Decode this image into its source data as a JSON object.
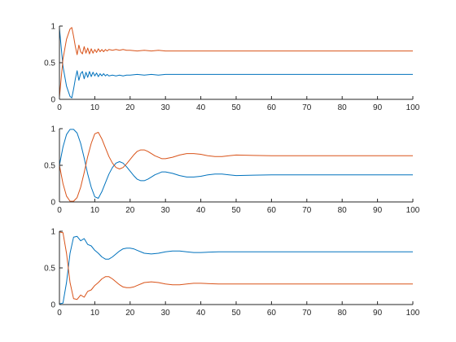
{
  "figure": {
    "background": "#ffffff",
    "axis_color": "#262626"
  },
  "chart_data": [
    {
      "type": "line",
      "title": "",
      "xlabel": "",
      "ylabel": "",
      "xlim": [
        0,
        100
      ],
      "ylim": [
        0,
        1
      ],
      "xticks": [
        0,
        10,
        20,
        30,
        40,
        50,
        60,
        70,
        80,
        90,
        100
      ],
      "yticks": [
        0,
        0.5,
        1
      ],
      "ytick_labels": [
        "0",
        "0.5",
        "1"
      ],
      "grid": false,
      "series": [
        {
          "color": "#0072BD",
          "x": [
            0,
            1,
            2,
            3,
            3.5,
            4,
            4.5,
            5,
            5.5,
            6,
            6.5,
            7,
            7.5,
            8,
            8.5,
            9,
            9.5,
            10,
            10.5,
            11,
            11.5,
            12,
            12.5,
            13,
            13.5,
            14,
            15,
            16,
            17,
            18,
            19,
            20,
            22,
            24,
            26,
            28,
            30,
            35,
            40,
            50,
            60,
            70,
            80,
            90,
            100
          ],
          "y": [
            0.97,
            0.45,
            0.18,
            0.04,
            0.02,
            0.14,
            0.28,
            0.39,
            0.26,
            0.35,
            0.38,
            0.28,
            0.37,
            0.3,
            0.38,
            0.31,
            0.37,
            0.32,
            0.36,
            0.31,
            0.35,
            0.32,
            0.35,
            0.32,
            0.34,
            0.32,
            0.33,
            0.32,
            0.33,
            0.32,
            0.33,
            0.33,
            0.34,
            0.33,
            0.34,
            0.33,
            0.34,
            0.34,
            0.34,
            0.34,
            0.34,
            0.34,
            0.34,
            0.34,
            0.34
          ]
        },
        {
          "color": "#D95319",
          "x": [
            0,
            1,
            2,
            3,
            3.5,
            4,
            4.5,
            5,
            5.5,
            6,
            6.5,
            7,
            7.5,
            8,
            8.5,
            9,
            9.5,
            10,
            10.5,
            11,
            11.5,
            12,
            12.5,
            13,
            13.5,
            14,
            15,
            16,
            17,
            18,
            19,
            20,
            22,
            24,
            26,
            28,
            30,
            35,
            40,
            50,
            60,
            70,
            80,
            90,
            100
          ],
          "y": [
            0.03,
            0.55,
            0.82,
            0.96,
            0.98,
            0.86,
            0.72,
            0.61,
            0.74,
            0.65,
            0.62,
            0.72,
            0.63,
            0.7,
            0.62,
            0.69,
            0.63,
            0.68,
            0.64,
            0.69,
            0.65,
            0.68,
            0.65,
            0.68,
            0.66,
            0.68,
            0.67,
            0.68,
            0.67,
            0.68,
            0.67,
            0.67,
            0.66,
            0.67,
            0.66,
            0.67,
            0.66,
            0.66,
            0.66,
            0.66,
            0.66,
            0.66,
            0.66,
            0.66,
            0.66
          ]
        }
      ]
    },
    {
      "type": "line",
      "title": "",
      "xlabel": "",
      "ylabel": "",
      "xlim": [
        0,
        100
      ],
      "ylim": [
        0,
        1
      ],
      "xticks": [
        0,
        10,
        20,
        30,
        40,
        50,
        60,
        70,
        80,
        90,
        100
      ],
      "yticks": [
        0,
        0.5,
        1
      ],
      "ytick_labels": [
        "0",
        "0.5",
        "1"
      ],
      "grid": false,
      "series": [
        {
          "color": "#0072BD",
          "x": [
            0,
            1,
            2,
            3,
            4,
            5,
            6,
            7,
            8,
            9,
            10,
            11,
            12,
            13,
            14,
            15,
            16,
            17,
            18,
            19,
            20,
            21,
            22,
            23,
            24,
            25,
            26,
            27,
            28,
            29,
            30,
            31,
            32,
            34,
            36,
            38,
            40,
            42,
            44,
            46,
            48,
            50,
            55,
            60,
            70,
            80,
            90,
            100
          ],
          "y": [
            0.5,
            0.75,
            0.92,
            0.99,
            0.99,
            0.94,
            0.8,
            0.6,
            0.38,
            0.2,
            0.07,
            0.05,
            0.14,
            0.26,
            0.38,
            0.47,
            0.53,
            0.55,
            0.53,
            0.48,
            0.42,
            0.36,
            0.31,
            0.29,
            0.29,
            0.31,
            0.34,
            0.37,
            0.39,
            0.41,
            0.41,
            0.4,
            0.39,
            0.36,
            0.34,
            0.34,
            0.35,
            0.37,
            0.38,
            0.38,
            0.37,
            0.36,
            0.365,
            0.37,
            0.37,
            0.37,
            0.37,
            0.37
          ]
        },
        {
          "color": "#D95319",
          "x": [
            0,
            1,
            2,
            3,
            4,
            5,
            6,
            7,
            8,
            9,
            10,
            11,
            12,
            13,
            14,
            15,
            16,
            17,
            18,
            19,
            20,
            21,
            22,
            23,
            24,
            25,
            26,
            27,
            28,
            29,
            30,
            31,
            32,
            34,
            36,
            38,
            40,
            42,
            44,
            46,
            48,
            50,
            55,
            60,
            70,
            80,
            90,
            100
          ],
          "y": [
            0.5,
            0.25,
            0.08,
            0.01,
            0.01,
            0.06,
            0.2,
            0.4,
            0.62,
            0.8,
            0.93,
            0.95,
            0.86,
            0.74,
            0.62,
            0.53,
            0.47,
            0.45,
            0.47,
            0.52,
            0.58,
            0.64,
            0.69,
            0.71,
            0.71,
            0.69,
            0.66,
            0.63,
            0.61,
            0.59,
            0.59,
            0.6,
            0.61,
            0.64,
            0.66,
            0.66,
            0.65,
            0.63,
            0.62,
            0.62,
            0.63,
            0.64,
            0.635,
            0.63,
            0.63,
            0.63,
            0.63,
            0.63
          ]
        }
      ]
    },
    {
      "type": "line",
      "title": "",
      "xlabel": "",
      "ylabel": "",
      "xlim": [
        0,
        100
      ],
      "ylim": [
        0,
        1
      ],
      "xticks": [
        0,
        10,
        20,
        30,
        40,
        50,
        60,
        70,
        80,
        90,
        100
      ],
      "yticks": [
        0,
        0.5,
        1
      ],
      "ytick_labels": [
        "0",
        "0.5",
        "1"
      ],
      "grid": false,
      "series": [
        {
          "color": "#0072BD",
          "x": [
            0,
            1,
            2,
            3,
            4,
            5,
            6,
            7,
            8,
            9,
            10,
            11,
            12,
            13,
            14,
            15,
            16,
            17,
            18,
            19,
            20,
            21,
            22,
            24,
            26,
            28,
            30,
            32,
            34,
            36,
            38,
            40,
            45,
            50,
            60,
            70,
            80,
            90,
            100
          ],
          "y": [
            0.01,
            0.02,
            0.3,
            0.7,
            0.92,
            0.93,
            0.87,
            0.9,
            0.82,
            0.8,
            0.74,
            0.7,
            0.65,
            0.62,
            0.62,
            0.65,
            0.69,
            0.73,
            0.76,
            0.77,
            0.77,
            0.76,
            0.74,
            0.7,
            0.69,
            0.7,
            0.72,
            0.73,
            0.73,
            0.72,
            0.71,
            0.71,
            0.72,
            0.72,
            0.72,
            0.72,
            0.72,
            0.72,
            0.72
          ]
        },
        {
          "color": "#D95319",
          "x": [
            0,
            1,
            2,
            3,
            4,
            5,
            6,
            7,
            8,
            9,
            10,
            11,
            12,
            13,
            14,
            15,
            16,
            17,
            18,
            19,
            20,
            21,
            22,
            24,
            26,
            28,
            30,
            32,
            34,
            36,
            38,
            40,
            45,
            50,
            60,
            70,
            80,
            90,
            100
          ],
          "y": [
            0.99,
            0.98,
            0.7,
            0.3,
            0.08,
            0.07,
            0.13,
            0.1,
            0.18,
            0.2,
            0.26,
            0.3,
            0.35,
            0.38,
            0.38,
            0.35,
            0.31,
            0.27,
            0.24,
            0.23,
            0.23,
            0.24,
            0.26,
            0.3,
            0.31,
            0.3,
            0.28,
            0.27,
            0.27,
            0.28,
            0.29,
            0.29,
            0.28,
            0.28,
            0.28,
            0.28,
            0.28,
            0.28,
            0.28
          ]
        }
      ]
    }
  ]
}
